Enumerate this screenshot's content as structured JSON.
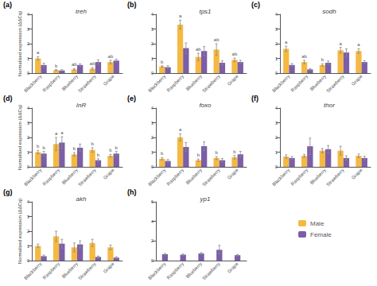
{
  "chart_data": [
    {
      "type": "bar",
      "title": "treh",
      "annotations": [
        {
          "text": "(a)"
        }
      ],
      "ylabel": "Normalised expression (ΔΔCq)",
      "categories": [
        "Blackberry",
        "Raspberry",
        "Blueberry",
        "Strawberry",
        "Grape"
      ],
      "series": [
        {
          "name": "Male",
          "color": "#F5B942",
          "values": [
            1.0,
            0.2,
            0.25,
            0.3,
            0.75
          ],
          "errors": [
            0.12,
            0.04,
            0.05,
            0.08,
            0.12
          ],
          "letters": [
            "a",
            "b",
            "ab",
            "ab",
            "ab"
          ]
        },
        {
          "name": "Female",
          "color": "#7B5EA7",
          "values": [
            0.55,
            0.18,
            0.55,
            0.75,
            0.85
          ],
          "errors": [
            0.12,
            0.05,
            0.08,
            0.15,
            0.1
          ]
        }
      ],
      "ylim": [
        0,
        4
      ],
      "yticks": [
        0,
        1,
        2,
        3,
        4
      ],
      "grid": false,
      "legend": "lower right"
    },
    {
      "type": "bar",
      "title": "tps1",
      "annotations": [
        {
          "text": "(b)"
        }
      ],
      "categories": [
        "Blackberry",
        "Raspberry",
        "Blueberry",
        "Strawberry",
        "Grape"
      ],
      "series": [
        {
          "name": "Male",
          "color": "#F5B942",
          "values": [
            0.45,
            3.3,
            1.1,
            1.6,
            0.9
          ],
          "errors": [
            0.05,
            0.3,
            0.25,
            0.4,
            0.12
          ],
          "letters": [
            "b",
            "a",
            "ab",
            "ab",
            "ab"
          ]
        },
        {
          "name": "Female",
          "color": "#7B5EA7",
          "values": [
            0.4,
            1.7,
            1.5,
            0.7,
            0.75
          ],
          "errors": [
            0.1,
            0.35,
            0.3,
            0.15,
            0.12
          ]
        }
      ],
      "ylim": [
        0,
        4
      ],
      "yticks": [
        0,
        1,
        2,
        3,
        4
      ],
      "grid": false
    },
    {
      "type": "bar",
      "title": "sodh",
      "annotations": [
        {
          "text": "(c)"
        }
      ],
      "categories": [
        "Blackberry",
        "Raspberry",
        "Blueberry",
        "Strawberry",
        "Grape"
      ],
      "series": [
        {
          "name": "Male",
          "color": "#F5B942",
          "values": [
            1.65,
            0.75,
            0.55,
            1.55,
            1.5
          ],
          "errors": [
            0.18,
            0.12,
            0.08,
            0.2,
            0.15
          ],
          "letters": [
            "a",
            "ab",
            "b",
            "a",
            "a"
          ]
        },
        {
          "name": "Female",
          "color": "#7B5EA7",
          "values": [
            0.55,
            0.25,
            0.7,
            1.4,
            0.75
          ],
          "errors": [
            0.1,
            0.05,
            0.12,
            0.25,
            0.1
          ]
        }
      ],
      "ylim": [
        0,
        4
      ],
      "yticks": [
        0,
        1,
        2,
        3,
        4
      ],
      "grid": false
    },
    {
      "type": "bar",
      "title": "InR",
      "annotations": [
        {
          "text": "(d)"
        }
      ],
      "ylabel": "Normalised expression (ΔΔCq)",
      "categories": [
        "Blackberry",
        "Raspberry",
        "Blueberry",
        "Strawberry",
        "Grape"
      ],
      "series": [
        {
          "name": "Male",
          "color": "#F5B942",
          "values": [
            1.0,
            1.55,
            0.85,
            1.15,
            0.75
          ],
          "errors": [
            0.12,
            0.45,
            0.12,
            0.15,
            0.1
          ],
          "letters": [
            "b",
            "a",
            "b",
            "b",
            "b"
          ]
        },
        {
          "name": "Female",
          "color": "#7B5EA7",
          "values": [
            0.9,
            1.65,
            1.3,
            0.45,
            0.9
          ],
          "errors": [
            0.15,
            0.4,
            0.25,
            0.1,
            0.15
          ],
          "letters": [
            "b",
            "a",
            null,
            "b",
            "b"
          ]
        }
      ],
      "ylim": [
        0,
        4
      ],
      "yticks": [
        0,
        1,
        2,
        3,
        4
      ],
      "grid": false
    },
    {
      "type": "bar",
      "title": "foxo",
      "annotations": [
        {
          "text": "(e)"
        }
      ],
      "categories": [
        "Blackberry",
        "Raspberry",
        "Blueberry",
        "Strawberry",
        "Grape"
      ],
      "series": [
        {
          "name": "Male",
          "color": "#F5B942",
          "values": [
            0.55,
            2.0,
            0.45,
            0.6,
            0.65
          ],
          "errors": [
            0.08,
            0.25,
            0.08,
            0.1,
            0.12
          ],
          "letters": [
            "b",
            "a",
            "b",
            "b",
            "b"
          ]
        },
        {
          "name": "Female",
          "color": "#7B5EA7",
          "values": [
            0.4,
            1.35,
            1.4,
            0.45,
            0.85
          ],
          "errors": [
            0.1,
            0.3,
            0.3,
            0.12,
            0.2
          ]
        }
      ],
      "ylim": [
        0,
        4
      ],
      "yticks": [
        0,
        1,
        2,
        3,
        4
      ],
      "grid": false
    },
    {
      "type": "bar",
      "title": "thor",
      "annotations": [
        {
          "text": "(f)"
        }
      ],
      "categories": [
        "Blackberry",
        "Raspberry",
        "Blueberry",
        "Strawberry",
        "Grape"
      ],
      "series": [
        {
          "name": "Male",
          "color": "#F5B942",
          "values": [
            0.7,
            0.75,
            1.1,
            1.1,
            0.75
          ],
          "errors": [
            0.12,
            0.1,
            0.15,
            0.3,
            0.12
          ]
        },
        {
          "name": "Female",
          "color": "#7B5EA7",
          "values": [
            0.6,
            1.4,
            1.2,
            0.6,
            0.6
          ],
          "errors": [
            0.1,
            0.55,
            0.25,
            0.15,
            0.12
          ]
        }
      ],
      "ylim": [
        0,
        4
      ],
      "yticks": [
        0,
        1,
        2,
        3,
        4
      ],
      "grid": false
    },
    {
      "type": "bar",
      "title": "akh",
      "annotations": [
        {
          "text": "(g)"
        }
      ],
      "ylabel": "Normalised expression (ΔΔCq)",
      "categories": [
        "Blackberry",
        "Raspberry",
        "Blueberry",
        "Strawberry",
        "Grape"
      ],
      "series": [
        {
          "name": "Male",
          "color": "#F5B942",
          "values": [
            1.0,
            1.65,
            0.9,
            1.2,
            0.9
          ],
          "errors": [
            0.12,
            0.35,
            0.3,
            0.25,
            0.15
          ]
        },
        {
          "name": "Female",
          "color": "#7B5EA7",
          "values": [
            0.3,
            1.15,
            1.1,
            0.25,
            0.2
          ],
          "errors": [
            0.08,
            0.3,
            0.25,
            0.06,
            0.06
          ]
        }
      ],
      "ylim": [
        0,
        4
      ],
      "yticks": [
        0,
        1,
        2,
        3,
        4
      ],
      "grid": false
    },
    {
      "type": "bar",
      "title": "yp1",
      "annotations": [
        {
          "text": "(h)"
        }
      ],
      "categories": [
        "Blackberry",
        "Raspberry",
        "Blueberry",
        "Strawberry",
        "Grape"
      ],
      "series": [
        {
          "name": "Female",
          "color": "#7B5EA7",
          "values": [
            0.65,
            0.6,
            0.72,
            1.1,
            0.55
          ],
          "errors": [
            0.08,
            0.07,
            0.1,
            0.45,
            0.08
          ]
        }
      ],
      "ylim": [
        0,
        6
      ],
      "yticks": [
        0,
        2,
        4,
        6
      ],
      "grid": false
    }
  ]
}
